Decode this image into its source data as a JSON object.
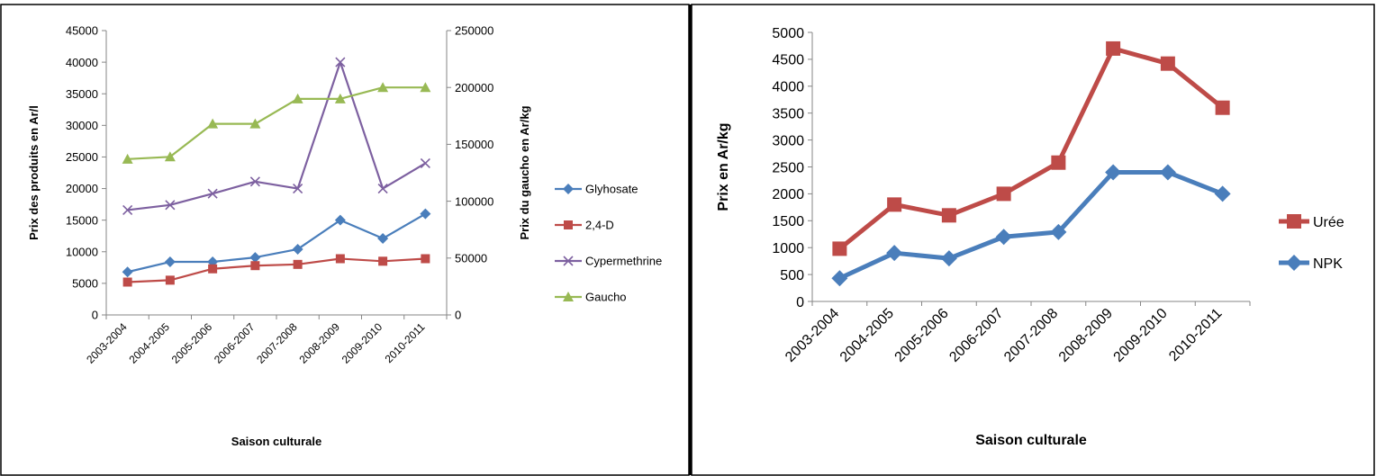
{
  "chart_data": [
    {
      "type": "line",
      "categories": [
        "2003-2004",
        "2004-2005",
        "2005-2006",
        "2006-2007",
        "2007-2008",
        "2008-2009",
        "2009-2010",
        "2010-2011"
      ],
      "xlabel": "Saison culturale",
      "ylabel": "Prix des produits en Ar/l",
      "y2label": "Prix du gaucho en Ar/kg",
      "ylim": [
        0,
        45000
      ],
      "yticks": [
        0,
        5000,
        10000,
        15000,
        20000,
        25000,
        30000,
        35000,
        40000,
        45000
      ],
      "y2lim": [
        0,
        250000
      ],
      "y2ticks": [
        0,
        50000,
        100000,
        150000,
        200000,
        250000
      ],
      "grid": false,
      "legend": "right",
      "series": [
        {
          "name": "Glyhosate",
          "axis": "left",
          "color": "#4a7ebb",
          "marker": "diamond",
          "values": [
            6800,
            8400,
            8400,
            9100,
            10400,
            15000,
            12100,
            16000
          ]
        },
        {
          "name": "2,4-D",
          "axis": "left",
          "color": "#be4b48",
          "marker": "square",
          "values": [
            5200,
            5500,
            7300,
            7800,
            8000,
            8900,
            8500,
            8900
          ]
        },
        {
          "name": "Cypermethrine",
          "axis": "left",
          "color": "#7d60a0",
          "marker": "x",
          "values": [
            16600,
            17400,
            19200,
            21100,
            20000,
            40000,
            20000,
            24000
          ]
        },
        {
          "name": "Gaucho",
          "axis": "right",
          "color": "#98b954",
          "marker": "triangle",
          "values": [
            137000,
            139000,
            168000,
            168000,
            190000,
            190000,
            200000,
            200000
          ]
        }
      ]
    },
    {
      "type": "line",
      "categories": [
        "2003-2004",
        "2004-2005",
        "2005-2006",
        "2006-2007",
        "2007-2008",
        "2008-2009",
        "2009-2010",
        "2010-2011"
      ],
      "xlabel": "Saison culturale",
      "ylabel": "Prix en Ar/kg",
      "ylim": [
        0,
        5000
      ],
      "yticks": [
        0,
        500,
        1000,
        1500,
        2000,
        2500,
        3000,
        3500,
        4000,
        4500,
        5000
      ],
      "grid": false,
      "legend": "right",
      "series": [
        {
          "name": "Urée",
          "color": "#be4b48",
          "marker": "square",
          "values": [
            980,
            1800,
            1600,
            2000,
            2580,
            4700,
            4420,
            3600
          ]
        },
        {
          "name": "NPK",
          "color": "#4a7ebb",
          "marker": "diamond",
          "values": [
            430,
            900,
            800,
            1200,
            1290,
            2400,
            2400,
            2000
          ]
        }
      ]
    }
  ]
}
